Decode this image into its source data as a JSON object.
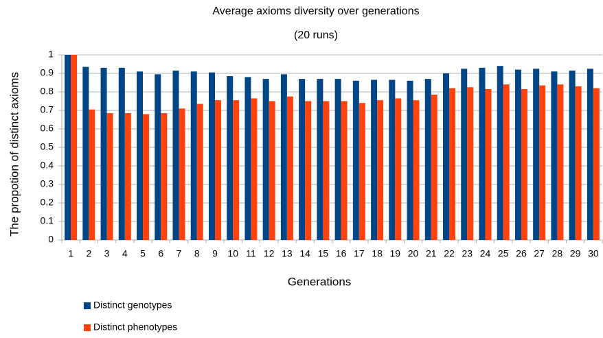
{
  "chart_data": {
    "type": "bar",
    "title": "Average axioms diversity over generations",
    "subtitle": "(20 runs)",
    "x_label": "Generations",
    "y_label": "The propotion of distinct axioms",
    "categories": [
      "1",
      "2",
      "3",
      "4",
      "5",
      "6",
      "7",
      "8",
      "9",
      "10",
      "11",
      "12",
      "13",
      "14",
      "15",
      "16",
      "17",
      "18",
      "19",
      "20",
      "21",
      "22",
      "23",
      "24",
      "25",
      "26",
      "27",
      "28",
      "29",
      "30"
    ],
    "series": [
      {
        "name": "Distinct genotypes",
        "color": "#004586",
        "values": [
          1.0,
          0.935,
          0.93,
          0.93,
          0.91,
          0.895,
          0.915,
          0.91,
          0.905,
          0.885,
          0.88,
          0.87,
          0.895,
          0.87,
          0.87,
          0.87,
          0.86,
          0.865,
          0.865,
          0.86,
          0.87,
          0.9,
          0.925,
          0.93,
          0.94,
          0.92,
          0.925,
          0.91,
          0.915,
          0.925
        ]
      },
      {
        "name": "Distinct phenotypes",
        "color": "#ff420e",
        "values": [
          1.0,
          0.705,
          0.685,
          0.685,
          0.68,
          0.685,
          0.71,
          0.735,
          0.755,
          0.755,
          0.765,
          0.75,
          0.775,
          0.75,
          0.75,
          0.75,
          0.74,
          0.755,
          0.765,
          0.755,
          0.785,
          0.82,
          0.825,
          0.815,
          0.84,
          0.815,
          0.835,
          0.84,
          0.83,
          0.82
        ]
      }
    ],
    "ylim": [
      0,
      1
    ],
    "yticks": [
      0,
      0.1,
      0.2,
      0.3,
      0.4,
      0.5,
      0.6,
      0.7,
      0.8,
      0.9,
      1
    ],
    "grid": true,
    "legend": "bottom-left"
  }
}
